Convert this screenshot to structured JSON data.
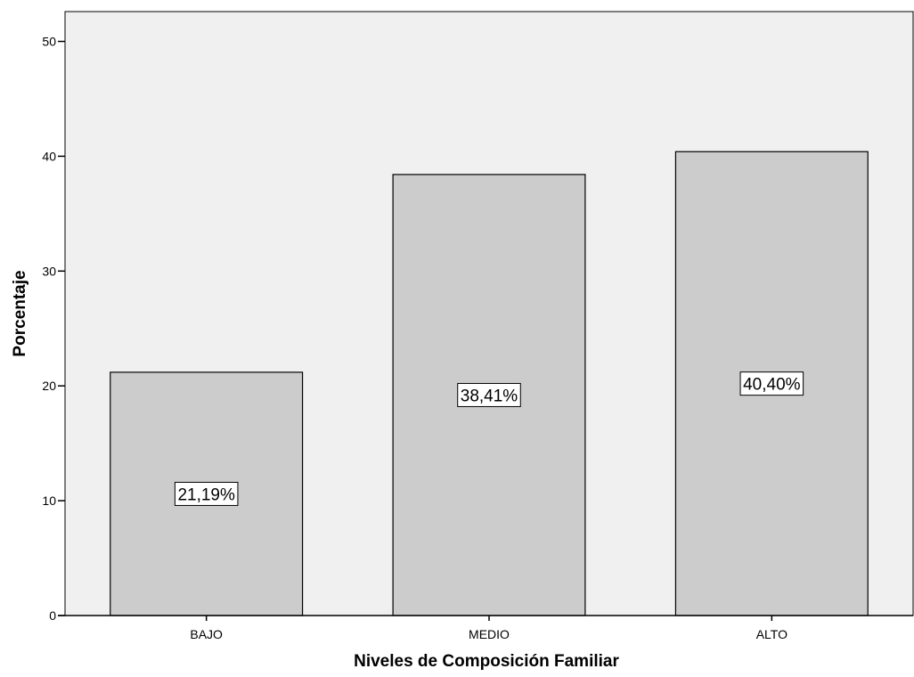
{
  "chart_data": {
    "type": "bar",
    "categories": [
      "BAJO",
      "MEDIO",
      "ALTO"
    ],
    "values": [
      21.19,
      38.41,
      40.4
    ],
    "data_labels": [
      "21,19%",
      "38,41%",
      "40,40%"
    ],
    "xlabel": "Niveles de Composición Familiar",
    "ylabel": "Porcentaje",
    "ylim": [
      0,
      52.6
    ],
    "yticks": [
      0,
      10,
      20,
      30,
      40,
      50
    ],
    "ytick_labels": [
      "0",
      "10",
      "20",
      "30",
      "40",
      "50"
    ],
    "grid": false,
    "legend": "none",
    "colors": {
      "plot_background": "#f0f0f0",
      "bar_fill": "#cccccc",
      "bar_stroke": "#000000",
      "label_box": "#ffffff"
    }
  }
}
